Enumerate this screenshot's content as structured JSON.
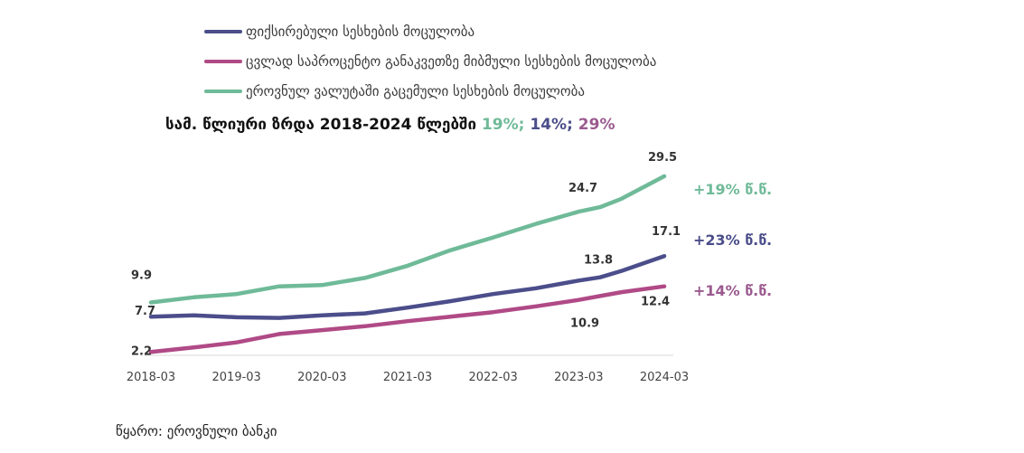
{
  "chart_data": {
    "type": "line",
    "title": {
      "text": "სამ. წლიური ზრდა 2018-2024 წლებში",
      "values": [
        {
          "text": "19%;",
          "color": "#6fba98"
        },
        {
          "text": "14%;",
          "color": "#4b4e8a"
        },
        {
          "text": "29%",
          "color": "#9b5a8f"
        }
      ]
    },
    "x_ticks": [
      "2018-03",
      "2019-03",
      "2020-03",
      "2021-03",
      "2022-03",
      "2023-03",
      "2024-03"
    ],
    "x_range": [
      "2018-03",
      "2024-03"
    ],
    "ylim": [
      0,
      33
    ],
    "grid": false,
    "legend_position": "top-left",
    "series": [
      {
        "name": "ფიქსირებული სესხების მოცულობა",
        "color": "#4b4e8a",
        "points": [
          [
            "2018-03",
            7.7
          ],
          [
            "2018-09",
            7.9
          ],
          [
            "2019-03",
            7.6
          ],
          [
            "2019-09",
            7.5
          ],
          [
            "2020-03",
            7.9
          ],
          [
            "2020-09",
            8.2
          ],
          [
            "2021-03",
            9.1
          ],
          [
            "2021-09",
            10.1
          ],
          [
            "2022-03",
            11.2
          ],
          [
            "2022-09",
            12.1
          ],
          [
            "2023-03",
            13.3
          ],
          [
            "2023-06",
            13.8
          ],
          [
            "2023-09",
            14.8
          ],
          [
            "2024-03",
            17.1
          ]
        ],
        "labels": [
          {
            "x": "2018-03",
            "y": 7.7,
            "text": "7.7"
          },
          {
            "x": "2023-06",
            "y": 13.8,
            "text": "13.8"
          },
          {
            "x": "2024-03",
            "y": 17.1,
            "text": "17.1"
          }
        ],
        "growth_label": "+23% წ.წ."
      },
      {
        "name": "ცვლად საპროცენტო განაკვეთზე მიბმული სესხების მოცულობა",
        "color": "#b04a86",
        "points": [
          [
            "2018-03",
            2.2
          ],
          [
            "2018-09",
            2.9
          ],
          [
            "2019-03",
            3.7
          ],
          [
            "2019-09",
            5.0
          ],
          [
            "2020-03",
            5.6
          ],
          [
            "2020-09",
            6.2
          ],
          [
            "2021-03",
            7.0
          ],
          [
            "2021-09",
            7.7
          ],
          [
            "2022-03",
            8.4
          ],
          [
            "2022-09",
            9.3
          ],
          [
            "2023-03",
            10.3
          ],
          [
            "2023-06",
            10.9
          ],
          [
            "2023-09",
            11.5
          ],
          [
            "2024-03",
            12.4
          ]
        ],
        "labels": [
          {
            "x": "2018-03",
            "y": 2.2,
            "text": "2.2"
          },
          {
            "x": "2023-06",
            "y": 10.9,
            "text": "10.9"
          },
          {
            "x": "2024-03",
            "y": 12.4,
            "text": "12.4"
          }
        ],
        "growth_label": "+14% წ.წ."
      },
      {
        "name": "ეროვნულ ვალუტაში გაცემული სესხების მოცულობა",
        "color": "#6fba98",
        "points": [
          [
            "2018-03",
            9.9
          ],
          [
            "2018-09",
            10.7
          ],
          [
            "2019-03",
            11.2
          ],
          [
            "2019-09",
            12.4
          ],
          [
            "2020-03",
            12.6
          ],
          [
            "2020-09",
            13.7
          ],
          [
            "2021-03",
            15.6
          ],
          [
            "2021-09",
            18.0
          ],
          [
            "2022-03",
            20.0
          ],
          [
            "2022-09",
            22.1
          ],
          [
            "2023-03",
            24.0
          ],
          [
            "2023-06",
            24.7
          ],
          [
            "2023-09",
            26.0
          ],
          [
            "2024-03",
            29.5
          ]
        ],
        "labels": [
          {
            "x": "2018-03",
            "y": 9.9,
            "text": "9.9"
          },
          {
            "x": "2023-06",
            "y": 24.7,
            "text": "24.7"
          },
          {
            "x": "2024-03",
            "y": 29.5,
            "text": "29.5"
          }
        ],
        "growth_label": "+19% წ.წ."
      }
    ]
  },
  "source": "წყარო: ეროვნული ბანკი"
}
